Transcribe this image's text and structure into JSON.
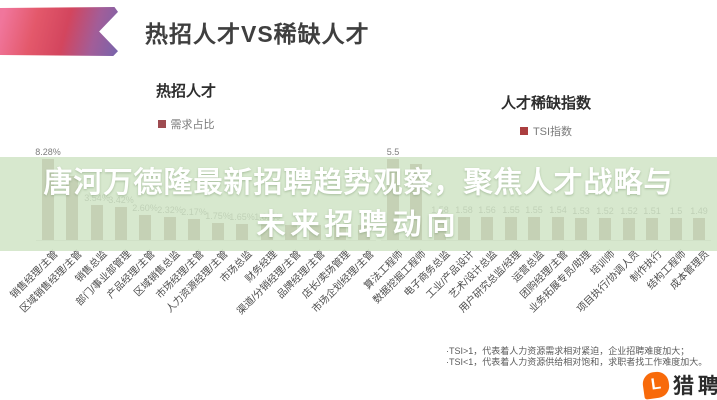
{
  "header": {
    "title": "热招人才VS稀缺人才"
  },
  "overlay": {
    "line1": "唐河万德隆最新招聘趋势观察，聚焦人才战略与",
    "line2": "未来招聘动向",
    "text_color": "#ffffff",
    "bg_color": "rgba(206,227,195,0.82)"
  },
  "chart_data": [
    {
      "type": "bar",
      "title": "热招人才",
      "legend": "需求占比",
      "legend_color": "#9e4b50",
      "bar_color": "#9c8274",
      "ylabel": "",
      "xlabel": "",
      "ylim": [
        0,
        9
      ],
      "categories": [
        "销售经理/主管",
        "区域销售经理/主管",
        "销售总监",
        "部门/事业部管理",
        "产品经理/主管",
        "区域销售总监",
        "市场经理/主管",
        "人力资源经理/主管",
        "市场总监",
        "财务经理",
        "渠道/分销经理/主管",
        "品牌经理/主管",
        "店长/卖场管理",
        "市场企划经理/主管"
      ],
      "values": [
        8.28,
        6.5,
        3.54,
        3.42,
        2.6,
        2.32,
        2.17,
        1.75,
        1.65,
        1.62,
        1.58,
        1.55,
        1.52,
        1.5
      ],
      "labels": [
        "8.28%",
        "",
        "3.54%",
        "3.42%",
        "2.60%",
        "2.32%",
        "2.17%",
        "1.75%",
        "1.65%",
        "1.62%",
        "",
        "",
        "",
        ""
      ]
    },
    {
      "type": "bar",
      "title": "人才稀缺指数",
      "legend": "TSI指数",
      "legend_color": "#ab3e40",
      "bar_color": "#9c8274",
      "ylabel": "",
      "xlabel": "",
      "ylim": [
        0,
        6
      ],
      "categories": [
        "算法工程师",
        "数据挖掘工程师",
        "电子商务总监",
        "工业/产品设计",
        "艺术/设计总监",
        "用户研究总监/经理",
        "运营总监",
        "团购经理/主管",
        "业务拓展专员/助理",
        "培训师",
        "项目执行/协调人员",
        "制作执行",
        "结构工程师",
        "成本管理员"
      ],
      "values": [
        5.5,
        5.2,
        1.58,
        1.58,
        1.56,
        1.55,
        1.55,
        1.54,
        1.53,
        1.52,
        1.52,
        1.51,
        1.5,
        1.49
      ],
      "labels": [
        "5.5",
        "",
        "1.58",
        "1.58",
        "1.56",
        "1.55",
        "1.55",
        "1.54",
        "1.53",
        "1.52",
        "1.52",
        "1.51",
        "1.5",
        "1.49"
      ]
    }
  ],
  "footnotes": {
    "line1": "·TSI>1，代表着人力资源需求相对紧迫，企业招聘难度加大；",
    "line2": "·TSI<1，代表着人力资源供给相对饱和，求职者找工作难度加大。"
  },
  "logo": {
    "mark": "L",
    "text": "猎聘",
    "color": "#f86a0a"
  }
}
